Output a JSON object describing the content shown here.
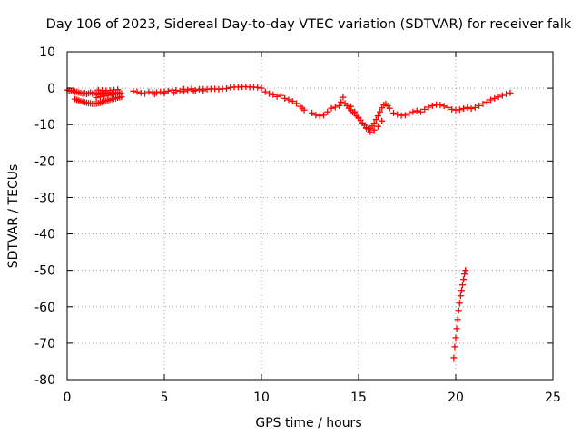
{
  "chart_data": {
    "type": "scatter",
    "title": "Day 106 of 2023, Sidereal Day-to-day VTEC variation (SDTVAR) for receiver falk",
    "xlabel": "GPS time / hours",
    "ylabel": "SDTVAR / TECUs",
    "xlim": [
      0,
      25
    ],
    "ylim": [
      -80,
      10
    ],
    "xticks": [
      0,
      5,
      10,
      15,
      20,
      25
    ],
    "yticks": [
      10,
      0,
      -10,
      -20,
      -30,
      -40,
      -50,
      -60,
      -70,
      -80
    ],
    "grid": true,
    "marker": "+",
    "series": [
      {
        "name": "SDTVAR",
        "color": "#ff0000",
        "x": [
          0.0,
          0.1,
          0.2,
          0.3,
          0.4,
          0.5,
          0.6,
          0.7,
          0.8,
          0.9,
          1.0,
          1.1,
          1.2,
          1.3,
          1.4,
          1.5,
          1.6,
          1.7,
          1.8,
          1.9,
          2.0,
          2.1,
          2.2,
          2.3,
          2.4,
          2.5,
          2.6,
          2.7,
          2.8,
          0.4,
          0.5,
          0.6,
          0.7,
          0.8,
          0.9,
          1.0,
          1.1,
          1.2,
          1.3,
          1.4,
          1.5,
          1.6,
          1.7,
          1.8,
          1.9,
          2.0,
          2.1,
          2.2,
          2.3,
          2.4,
          2.5,
          2.6,
          2.7,
          2.8,
          1.5,
          1.7,
          1.9,
          2.1,
          2.3,
          2.5,
          2.7,
          1.6,
          1.8,
          2.0,
          2.2,
          2.4,
          2.6,
          3.4,
          3.6,
          3.8,
          4.0,
          4.2,
          4.4,
          4.6,
          4.8,
          5.0,
          5.2,
          5.4,
          5.6,
          5.8,
          6.0,
          6.2,
          6.4,
          6.6,
          6.8,
          7.0,
          7.2,
          7.4,
          7.6,
          7.8,
          8.0,
          8.2,
          8.4,
          8.6,
          8.8,
          9.0,
          9.2,
          9.4,
          9.6,
          9.8,
          10.0,
          4.5,
          5.0,
          5.5,
          6.0,
          6.5,
          7.0,
          10.2,
          10.4,
          10.6,
          10.8,
          11.0,
          11.2,
          11.4,
          11.6,
          11.8,
          12.0,
          12.1,
          12.2,
          12.6,
          12.8,
          13.0,
          13.2,
          13.4,
          13.6,
          13.8,
          14.0,
          14.1,
          14.2,
          14.3,
          14.4,
          14.5,
          14.6,
          14.7,
          14.8,
          14.9,
          15.0,
          15.1,
          15.2,
          15.3,
          15.4,
          15.5,
          15.6,
          15.7,
          15.8,
          15.9,
          16.0,
          16.1,
          16.2,
          16.3,
          16.4,
          16.5,
          16.6,
          14.6,
          14.8,
          15.0,
          15.2,
          15.4,
          15.6,
          15.8,
          16.0,
          16.2,
          16.8,
          17.0,
          17.2,
          17.4,
          17.6,
          17.8,
          18.0,
          18.2,
          18.4,
          18.6,
          18.8,
          19.0,
          19.2,
          19.4,
          19.6,
          19.8,
          20.0,
          20.2,
          20.4,
          20.6,
          20.8,
          21.0,
          21.2,
          21.4,
          21.6,
          21.8,
          22.0,
          22.2,
          22.4,
          22.6,
          22.8,
          19.9,
          19.95,
          20.0,
          20.05,
          20.1,
          20.15,
          20.2,
          20.25,
          20.3,
          20.35,
          20.4,
          20.45,
          20.5
        ],
        "y": [
          -0.5,
          -0.6,
          -0.8,
          -0.7,
          -1.0,
          -1.0,
          -1.2,
          -1.3,
          -1.5,
          -1.3,
          -1.6,
          -1.4,
          -1.2,
          -1.5,
          -1.3,
          -1.6,
          -1.8,
          -1.5,
          -1.2,
          -1.6,
          -1.3,
          -1.5,
          -1.2,
          -1.6,
          -1.3,
          -1.5,
          -1.2,
          -1.6,
          -1.5,
          -3.0,
          -3.2,
          -3.4,
          -3.6,
          -3.7,
          -3.9,
          -4.0,
          -4.1,
          -4.2,
          -4.3,
          -4.3,
          -4.2,
          -4.1,
          -4.0,
          -3.8,
          -3.6,
          -3.5,
          -3.3,
          -3.2,
          -3.0,
          -2.9,
          -2.8,
          -2.6,
          -2.5,
          -2.4,
          -2.6,
          -2.4,
          -2.2,
          -2.0,
          -1.8,
          -1.6,
          -1.4,
          -0.5,
          -0.6,
          -0.7,
          -0.6,
          -0.5,
          -0.4,
          -0.8,
          -1.0,
          -1.3,
          -1.5,
          -1.0,
          -1.2,
          -1.2,
          -1.0,
          -1.0,
          -0.8,
          -0.5,
          -0.6,
          -0.8,
          -0.3,
          -0.5,
          -0.2,
          -0.6,
          -0.3,
          -0.3,
          -0.3,
          -0.2,
          -0.2,
          -0.3,
          -0.2,
          -0.1,
          0.2,
          0.3,
          0.3,
          0.4,
          0.4,
          0.3,
          0.3,
          0.2,
          0.0,
          -1.6,
          -1.4,
          -1.2,
          -0.9,
          -0.8,
          -0.7,
          -1.0,
          -1.5,
          -1.8,
          -2.3,
          -2.0,
          -2.8,
          -3.2,
          -3.6,
          -4.2,
          -5.0,
          -5.5,
          -6.0,
          -6.8,
          -7.4,
          -7.6,
          -7.4,
          -6.5,
          -5.5,
          -5.2,
          -4.8,
          -3.8,
          -2.5,
          -4.2,
          -4.8,
          -5.5,
          -6.0,
          -6.6,
          -7.0,
          -7.6,
          -8.2,
          -8.8,
          -9.5,
          -10.2,
          -10.8,
          -11.2,
          -11.0,
          -10.4,
          -9.6,
          -8.6,
          -7.6,
          -6.5,
          -5.4,
          -4.6,
          -4.3,
          -4.8,
          -5.5,
          -5.0,
          -6.5,
          -8.0,
          -9.5,
          -11.0,
          -12.0,
          -11.5,
          -10.5,
          -9.0,
          -6.8,
          -7.2,
          -7.5,
          -7.4,
          -7.0,
          -6.5,
          -6.2,
          -6.5,
          -5.8,
          -5.2,
          -4.8,
          -4.5,
          -4.6,
          -4.9,
          -5.3,
          -5.8,
          -6.0,
          -5.9,
          -5.6,
          -5.3,
          -5.6,
          -5.3,
          -4.8,
          -4.3,
          -3.8,
          -3.2,
          -2.8,
          -2.4,
          -2.0,
          -1.6,
          -1.3,
          -74.0,
          -71.0,
          -68.5,
          -66.0,
          -63.5,
          -61.0,
          -59.0,
          -57.0,
          -55.5,
          -54.0,
          -52.5,
          -51.0,
          -50.0
        ]
      }
    ]
  }
}
